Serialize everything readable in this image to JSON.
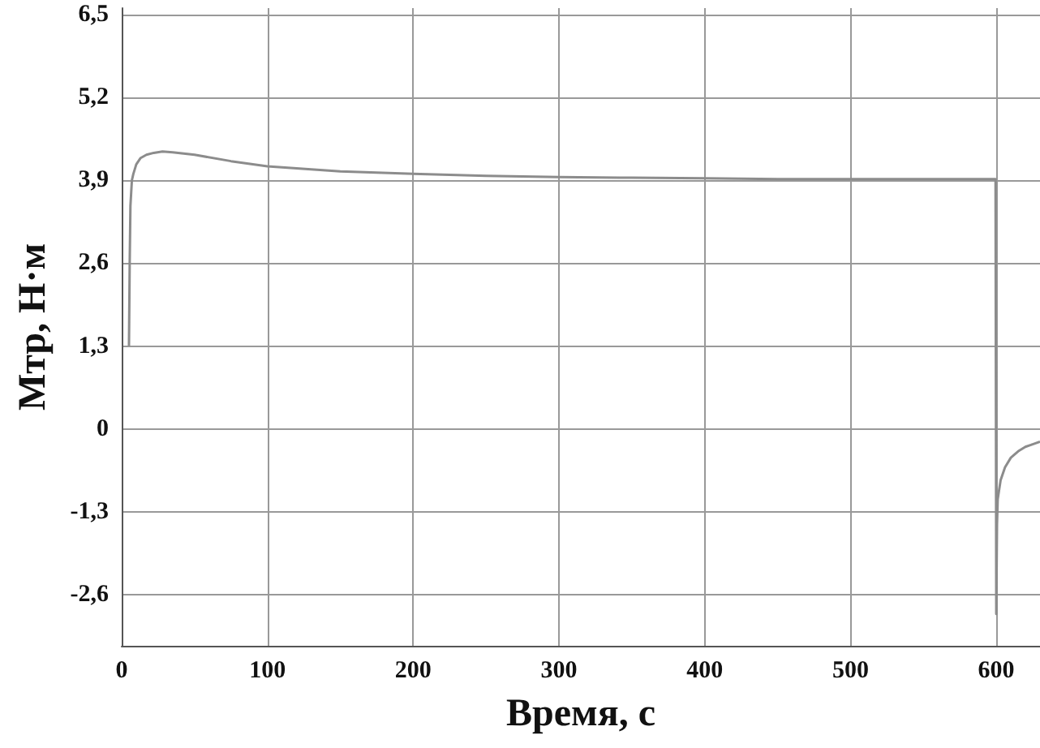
{
  "chart_data": {
    "type": "line",
    "xlabel": "Время, с",
    "ylabel": "Мтр, Н·м",
    "x": [
      5,
      5.5,
      6,
      7,
      8,
      10,
      13,
      17,
      22,
      28,
      35,
      50,
      75,
      100,
      150,
      200,
      250,
      300,
      350,
      400,
      450,
      500,
      550,
      598,
      599.5,
      600,
      600.5,
      601,
      603,
      606,
      610,
      615,
      620,
      625,
      630
    ],
    "series": [
      {
        "color": "#8c8c8c",
        "values": [
          1.3,
          2.6,
          3.5,
          3.9,
          4.0,
          4.15,
          4.25,
          4.3,
          4.33,
          4.35,
          4.34,
          4.3,
          4.2,
          4.12,
          4.04,
          4.0,
          3.97,
          3.95,
          3.94,
          3.93,
          3.92,
          3.92,
          3.92,
          3.92,
          3.92,
          -2.9,
          -1.5,
          -1.1,
          -0.8,
          -0.6,
          -0.45,
          -0.35,
          -0.28,
          -0.24,
          -0.2
        ]
      }
    ],
    "xlim": [
      0,
      630
    ],
    "xticks": [
      0,
      100,
      200,
      300,
      400,
      500,
      600
    ],
    "ylim": [
      -3.4,
      6.6
    ],
    "yticks": [
      {
        "value": -2.6,
        "label": "-2,6"
      },
      {
        "value": -1.3,
        "label": "-1,3"
      },
      0,
      {
        "value": 1.3,
        "label": "1,3"
      },
      {
        "value": 2.6,
        "label": "2,6"
      },
      {
        "value": 3.9,
        "label": "3,9"
      },
      {
        "value": 5.2,
        "label": "5,2"
      },
      {
        "value": 6.5,
        "label": "6,5"
      }
    ],
    "grid": true,
    "marker": "none",
    "line_style": "solid"
  }
}
